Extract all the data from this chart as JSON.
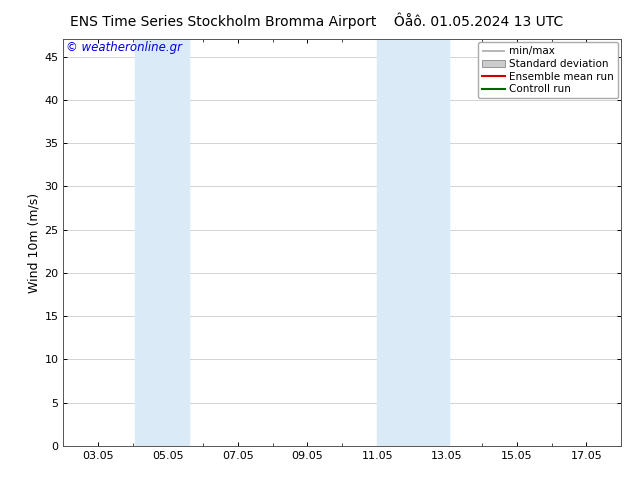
{
  "title_left": "ENS Time Series Stockholm Bromma Airport",
  "title_right": "Ôåô. 01.05.2024 13 UTC",
  "ylabel": "Wind 10m (m/s)",
  "watermark": "© weatheronline.gr",
  "watermark_color": "#0000dd",
  "bg_color": "#ffffff",
  "plot_bg_color": "#ffffff",
  "shaded_regions": [
    {
      "xmin": 4.05,
      "xmax": 5.6,
      "color": "#daeaf7"
    },
    {
      "xmin": 11.0,
      "xmax": 13.05,
      "color": "#daeaf7"
    }
  ],
  "xlim": [
    2.0,
    18.0
  ],
  "ylim": [
    0,
    47
  ],
  "xticks": [
    3.0,
    5.0,
    7.0,
    9.0,
    11.0,
    13.0,
    15.0,
    17.0
  ],
  "xticklabels": [
    "03.05",
    "05.05",
    "07.05",
    "09.05",
    "11.05",
    "13.05",
    "15.05",
    "17.05"
  ],
  "yticks": [
    0,
    5,
    10,
    15,
    20,
    25,
    30,
    35,
    40,
    45
  ],
  "legend_entries": [
    {
      "label": "min/max",
      "color": "#aaaaaa",
      "style": "errbar"
    },
    {
      "label": "Standard deviation",
      "color": "#cccccc",
      "style": "box"
    },
    {
      "label": "Ensemble mean run",
      "color": "#cc0000",
      "style": "line"
    },
    {
      "label": "Controll run",
      "color": "#006600",
      "style": "line"
    }
  ],
  "font_size_title": 10,
  "font_size_axis": 9,
  "font_size_ticks": 8,
  "font_size_legend": 7.5,
  "font_size_watermark": 8.5,
  "grid_color": "#cccccc",
  "spine_color": "#555555",
  "tick_color": "#000000"
}
